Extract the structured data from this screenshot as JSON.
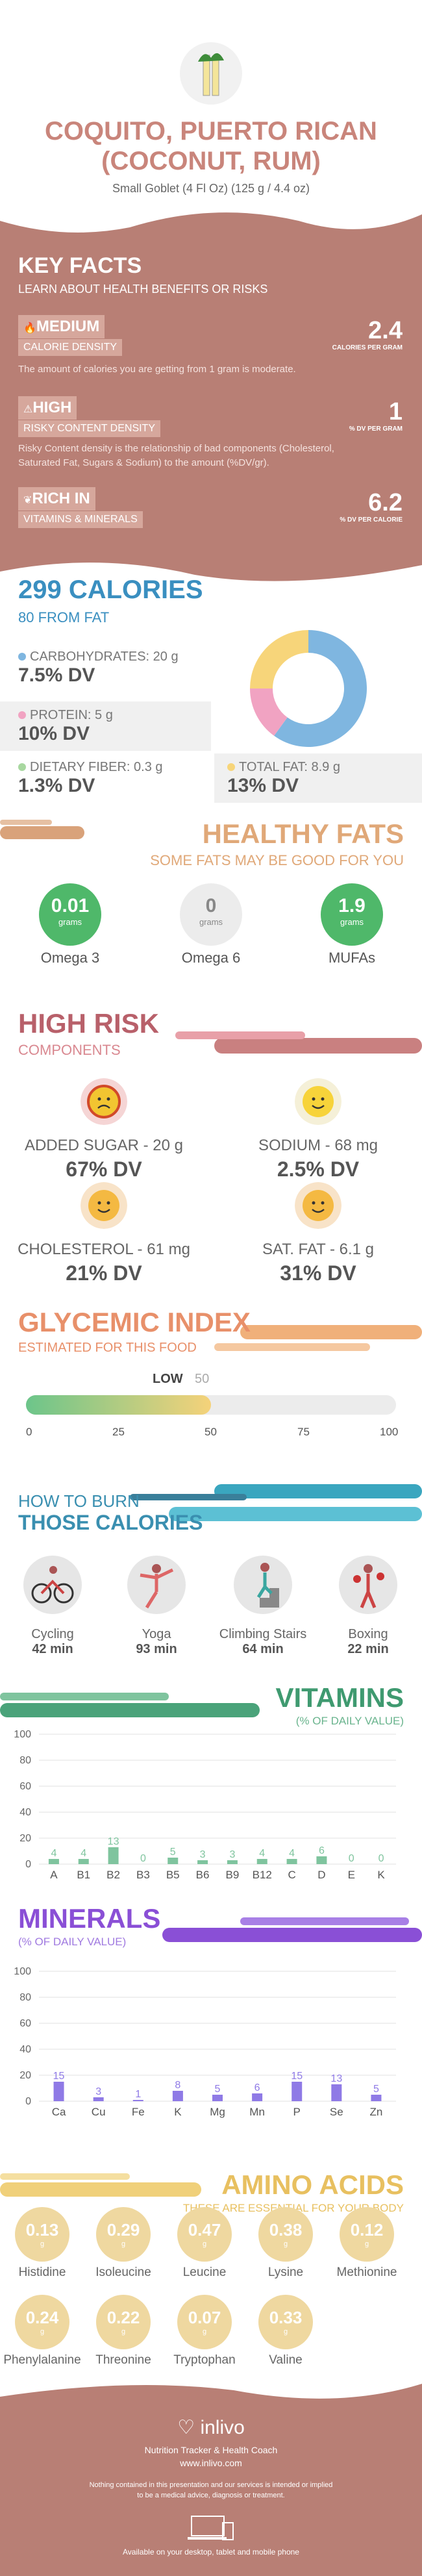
{
  "header": {
    "title_line1": "COQUITO, PUERTO RICAN",
    "title_line2": "(COCONUT, RUM)",
    "serving": "Small Goblet (4 Fl Oz) (125 g / 4.4 oz)"
  },
  "key_facts": {
    "title": "KEY FACTS",
    "subtitle": "LEARN ABOUT HEALTH BENEFITS OR RISKS",
    "items": [
      {
        "level": "MEDIUM",
        "label": "CALORIE DENSITY",
        "value": "2.4",
        "unit": "CALORIES PER GRAM",
        "desc": "The amount of calories you are getting from 1 gram is moderate."
      },
      {
        "level": "HIGH",
        "label": "RISKY CONTENT DENSITY",
        "value": "1",
        "unit": "% DV PER GRAM",
        "desc": "Risky Content density is the relationship of bad components (Cholesterol, Saturated Fat, Sugars & Sodium) to the amount (%DV/gr)."
      },
      {
        "level": "RICH IN",
        "label": "VITAMINS & MINERALS",
        "value": "6.2",
        "unit": "% DV PER CALORIE",
        "desc": ""
      }
    ]
  },
  "calories": {
    "title": "299 CALORIES",
    "subtitle": "80 FROM FAT",
    "nutrients": [
      {
        "label": "CARBOHYDRATES: 20 g",
        "dv": "7.5% DV",
        "color": "#7fb6e0"
      },
      {
        "label": "PROTEIN: 5 g",
        "dv": "10% DV",
        "color": "#f1a3c2"
      },
      {
        "label": "DIETARY FIBER: 0.3 g",
        "dv": "1.3% DV",
        "color": "#a8d8a0"
      },
      {
        "label": "TOTAL FAT: 8.9 g",
        "dv": "13% DV",
        "color": "#f7d57a"
      }
    ],
    "donut": [
      {
        "name": "carbs",
        "value": 60,
        "color": "#7fb6e0"
      },
      {
        "name": "protein",
        "value": 15,
        "color": "#f1a3c2"
      },
      {
        "name": "fat",
        "value": 25,
        "color": "#f7d57a"
      }
    ]
  },
  "fats": {
    "title": "HEALTHY FATS",
    "subtitle": "SOME FATS MAY BE GOOD FOR YOU",
    "items": [
      {
        "value": "0.01",
        "unit": "grams",
        "label": "Omega 3",
        "color": "#4fb86a"
      },
      {
        "value": "0",
        "unit": "grams",
        "label": "Omega 6",
        "color": "#e6e6e6"
      },
      {
        "value": "1.9",
        "unit": "grams",
        "label": "MUFAs",
        "color": "#4fb86a"
      }
    ]
  },
  "risk": {
    "title": "HIGH RISK",
    "subtitle": "COMPONENTS",
    "items": [
      {
        "label": "ADDED SUGAR - 20 g",
        "dv": "67% DV",
        "face": "sad"
      },
      {
        "label": "SODIUM - 68 mg",
        "dv": "2.5% DV",
        "face": "happy"
      },
      {
        "label": "CHOLESTEROL - 61 mg",
        "dv": "21% DV",
        "face": "neutral"
      },
      {
        "label": "SAT. FAT - 6.1 g",
        "dv": "31% DV",
        "face": "neutral"
      }
    ]
  },
  "glycemic": {
    "title": "GLYCEMIC INDEX",
    "subtitle": "ESTIMATED FOR THIS FOOD",
    "level": "LOW",
    "value": "50",
    "ticks": [
      "0",
      "25",
      "50",
      "75",
      "100"
    ],
    "fraction": 0.5
  },
  "burn": {
    "title1": "HOW TO BURN",
    "title2": "THOSE CALORIES",
    "items": [
      {
        "label": "Cycling",
        "time": "42 min"
      },
      {
        "label": "Yoga",
        "time": "93 min"
      },
      {
        "label": "Climbing Stairs",
        "time": "64 min"
      },
      {
        "label": "Boxing",
        "time": "22 min"
      }
    ]
  },
  "vitamins": {
    "title": "VITAMINS",
    "subtitle": "(% OF DAILY VALUE)",
    "axis": [
      "100",
      "80",
      "60",
      "40",
      "20",
      "0"
    ],
    "chart_data": {
      "type": "bar",
      "categories": [
        "A",
        "B1",
        "B2",
        "B3",
        "B5",
        "B6",
        "B9",
        "B12",
        "C",
        "D",
        "E",
        "K"
      ],
      "values": [
        4,
        4,
        13,
        0,
        5,
        3,
        3,
        4,
        4,
        6,
        0,
        0
      ],
      "ylim": [
        0,
        100
      ]
    }
  },
  "minerals": {
    "title": "MINERALS",
    "subtitle": "(% OF DAILY VALUE)",
    "axis": [
      "100",
      "80",
      "60",
      "40",
      "20",
      "0"
    ],
    "chart_data": {
      "type": "bar",
      "categories": [
        "Ca",
        "Cu",
        "Fe",
        "K",
        "Mg",
        "Mn",
        "P",
        "Se",
        "Zn"
      ],
      "values": [
        15,
        3,
        1,
        8,
        5,
        6,
        15,
        13,
        5
      ],
      "ylim": [
        0,
        100
      ]
    }
  },
  "amino": {
    "title": "AMINO ACIDS",
    "subtitle": "THESE ARE ESSENTIAL FOR YOUR BODY",
    "unit": "g",
    "items": [
      {
        "value": "0.13",
        "label": "Histidine"
      },
      {
        "value": "0.29",
        "label": "Isoleucine"
      },
      {
        "value": "0.47",
        "label": "Leucine"
      },
      {
        "value": "0.38",
        "label": "Lysine"
      },
      {
        "value": "0.12",
        "label": "Methionine"
      },
      {
        "value": "0.24",
        "label": "Phenylalanine"
      },
      {
        "value": "0.22",
        "label": "Threonine"
      },
      {
        "value": "0.07",
        "label": "Tryptophan"
      },
      {
        "value": "0.33",
        "label": "Valine"
      }
    ]
  },
  "footer": {
    "brand": "inlivo",
    "tagline": "Nutrition Tracker & Health Coach",
    "url": "www.inlivo.com",
    "disclaimer1": "Nothing contained in this presentation and our services is intended or implied",
    "disclaimer2": "to be a medical advice, diagnosis or treatment.",
    "available": "Available on your desktop, tablet and mobile phone"
  }
}
